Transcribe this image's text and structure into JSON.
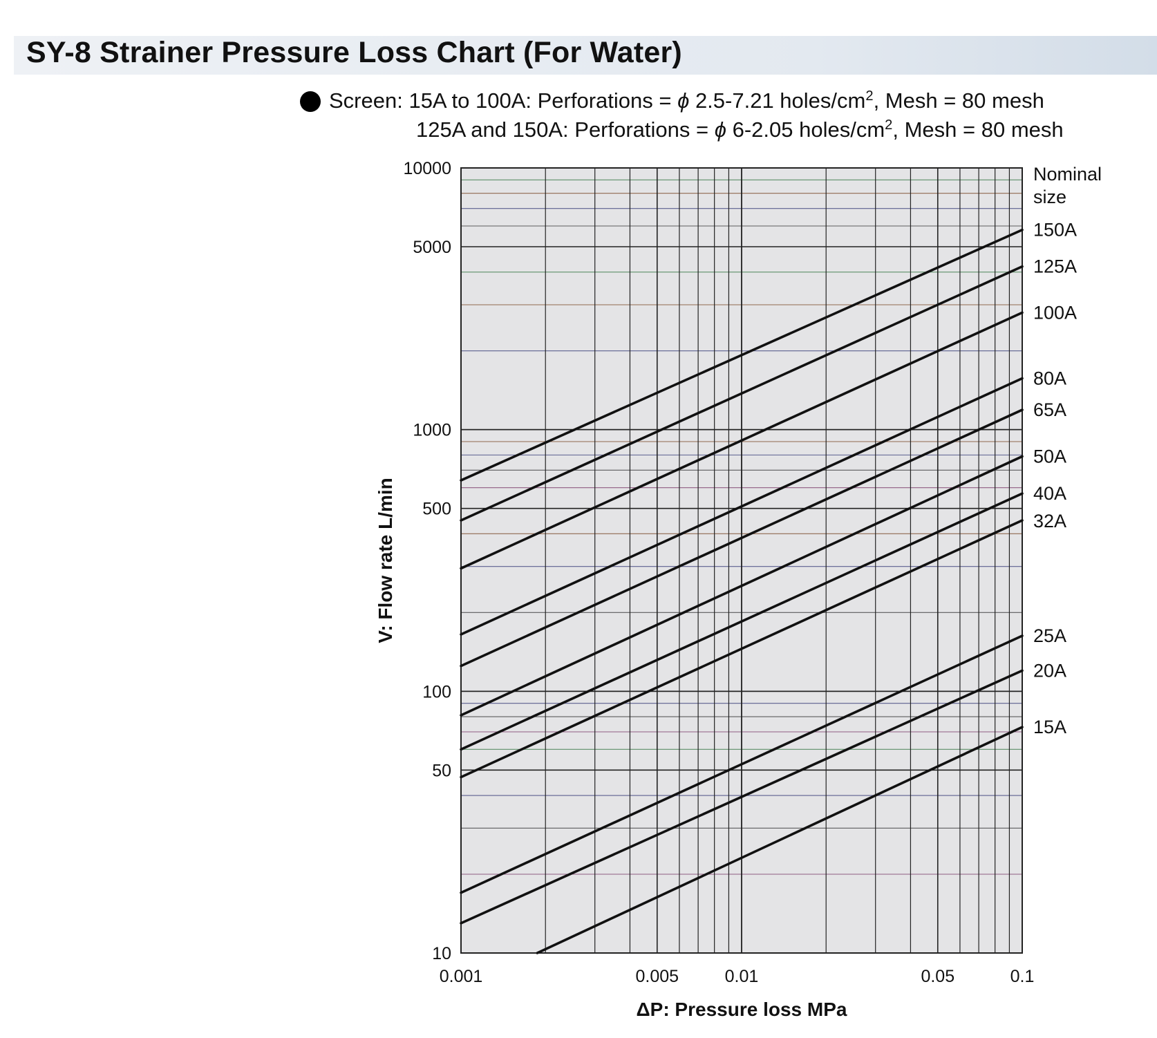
{
  "title": "SY-8 Strainer Pressure Loss Chart (For Water)",
  "note": {
    "line1_prefix": "Screen: 15A to 100A: Perforations = ",
    "line1_phi": "ϕ",
    "line1_mid": " 2.5-7.21 holes/cm",
    "line1_sup": "2",
    "line1_suffix": ", Mesh = 80 mesh",
    "line2_prefix": "125A and 150A: Perforations = ",
    "line2_phi": "ϕ",
    "line2_mid": " 6-2.05 holes/cm",
    "line2_sup": "2",
    "line2_suffix": ", Mesh = 80 mesh"
  },
  "chart_data": {
    "type": "line",
    "xlabel": "ΔP: Pressure loss MPa",
    "ylabel": "V: Flow rate L/min",
    "xscale": "log",
    "yscale": "log",
    "xlim": [
      0.001,
      0.1
    ],
    "ylim": [
      10,
      10000
    ],
    "x_tick_labels": [
      {
        "value": 0.001,
        "label": "0.001"
      },
      {
        "value": 0.005,
        "label": "0.005"
      },
      {
        "value": 0.01,
        "label": "0.01"
      },
      {
        "value": 0.05,
        "label": "0.05"
      },
      {
        "value": 0.1,
        "label": "0.1"
      }
    ],
    "y_tick_labels": [
      {
        "value": 10000,
        "label": "10000"
      },
      {
        "value": 5000,
        "label": "5000"
      },
      {
        "value": 1000,
        "label": "1000"
      },
      {
        "value": 500,
        "label": "500"
      },
      {
        "value": 100,
        "label": "100"
      },
      {
        "value": 50,
        "label": "50"
      },
      {
        "value": 10,
        "label": "10"
      }
    ],
    "grid": true,
    "legend_title": "Nominal size",
    "legend_placement": "right",
    "line_color": "#111111",
    "grid_color": "#222222",
    "plot_background": "#e4e4e6",
    "series": [
      {
        "name": "150A",
        "x": [
          0.001,
          0.1
        ],
        "y": [
          640,
          5800
        ]
      },
      {
        "name": "125A",
        "x": [
          0.001,
          0.1
        ],
        "y": [
          450,
          4200
        ]
      },
      {
        "name": "100A",
        "x": [
          0.001,
          0.1
        ],
        "y": [
          295,
          2800
        ]
      },
      {
        "name": "80A",
        "x": [
          0.001,
          0.1
        ],
        "y": [
          165,
          1570
        ]
      },
      {
        "name": "65A",
        "x": [
          0.001,
          0.1
        ],
        "y": [
          125,
          1190
        ]
      },
      {
        "name": "50A",
        "x": [
          0.001,
          0.1
        ],
        "y": [
          81,
          790
        ]
      },
      {
        "name": "40A",
        "x": [
          0.001,
          0.1
        ],
        "y": [
          60,
          570
        ]
      },
      {
        "name": "32A",
        "x": [
          0.001,
          0.1
        ],
        "y": [
          47,
          450
        ]
      },
      {
        "name": "25A",
        "x": [
          0.001,
          0.1
        ],
        "y": [
          17,
          163
        ]
      },
      {
        "name": "20A",
        "x": [
          0.001,
          0.1
        ],
        "y": [
          13,
          120
        ]
      },
      {
        "name": "15A",
        "x": [
          0.00187,
          0.1
        ],
        "y": [
          10,
          73
        ]
      }
    ]
  }
}
